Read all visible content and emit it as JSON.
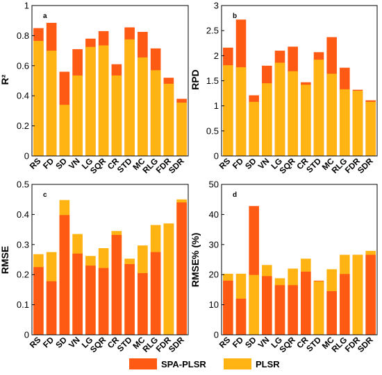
{
  "colors": {
    "spa": "#FF5A14",
    "plsr": "#FFB414"
  },
  "legend": [
    {
      "key": "spa",
      "label": "SPA-PLSR"
    },
    {
      "key": "plsr",
      "label": "PLSR"
    }
  ],
  "chart_data": [
    {
      "type": "bar",
      "panel": "a",
      "ylabel": "R²",
      "ylim": [
        0,
        1
      ],
      "yticks": [
        0,
        0.2,
        0.4,
        0.6,
        0.8,
        1
      ],
      "ytick_labels": [
        "0",
        "0.2",
        "0.4",
        "0.6",
        "0.8",
        "1"
      ],
      "categories": [
        "RS",
        "FD",
        "SD",
        "VN",
        "LG",
        "SQR",
        "CR",
        "STD",
        "MC",
        "RLG",
        "FDR",
        "SDR"
      ],
      "series": [
        {
          "name": "SPA-PLSR",
          "key": "spa",
          "values": [
            0.85,
            0.885,
            0.56,
            0.71,
            0.78,
            0.83,
            0.61,
            0.855,
            0.825,
            0.715,
            0.52,
            0.38
          ]
        },
        {
          "name": "PLSR",
          "key": "plsr",
          "values": [
            0.765,
            0.7,
            0.34,
            0.535,
            0.725,
            0.735,
            0.535,
            0.775,
            0.655,
            0.57,
            0.48,
            0.355
          ]
        }
      ]
    },
    {
      "type": "bar",
      "panel": "b",
      "ylabel": "RPD",
      "ylim": [
        0,
        3
      ],
      "yticks": [
        0,
        0.5,
        1,
        1.5,
        2,
        2.5,
        3
      ],
      "ytick_labels": [
        "0",
        "0.5",
        "1",
        "1.5",
        "2",
        "2.5",
        "3"
      ],
      "categories": [
        "RS",
        "FD",
        "SD",
        "VN",
        "LG",
        "SQR",
        "CR",
        "STD",
        "MC",
        "RLG",
        "FDR",
        "SDR"
      ],
      "series": [
        {
          "name": "SPA-PLSR",
          "key": "spa",
          "values": [
            2.16,
            2.72,
            1.21,
            1.8,
            2.1,
            2.18,
            1.47,
            2.07,
            2.37,
            1.76,
            1.32,
            1.11
          ]
        },
        {
          "name": "PLSR",
          "key": "plsr",
          "values": [
            1.81,
            1.77,
            1.08,
            1.45,
            1.86,
            1.69,
            1.42,
            1.92,
            1.64,
            1.33,
            1.3,
            1.08
          ]
        }
      ]
    },
    {
      "type": "bar",
      "panel": "c",
      "ylabel": "RMSE",
      "ylim": [
        0,
        0.5
      ],
      "yticks": [
        0,
        0.1,
        0.2,
        0.3,
        0.4,
        0.5
      ],
      "ytick_labels": [
        "0",
        "0.1",
        "0.2",
        "0.3",
        "0.4",
        "0.5"
      ],
      "categories": [
        "RS",
        "FD",
        "SD",
        "VN",
        "LG",
        "SQR",
        "CR",
        "STD",
        "MC",
        "RLG",
        "FDR",
        "SDR"
      ],
      "series": [
        {
          "name": "SPA-PLSR",
          "key": "spa",
          "values": [
            0.225,
            0.178,
            0.398,
            0.27,
            0.23,
            0.222,
            0.332,
            0.235,
            0.205,
            0.275,
            0.37,
            0.44
          ]
        },
        {
          "name": "PLSR",
          "key": "plsr",
          "values": [
            0.268,
            0.275,
            0.448,
            0.335,
            0.262,
            0.288,
            0.345,
            0.253,
            0.297,
            0.365,
            0.37,
            0.45
          ]
        }
      ]
    },
    {
      "type": "bar",
      "panel": "d",
      "ylabel": "RMSE% (%)",
      "ylim": [
        0,
        50
      ],
      "yticks": [
        0,
        10,
        20,
        30,
        40,
        50
      ],
      "ytick_labels": [
        "0",
        "10",
        "20",
        "30",
        "40",
        "50"
      ],
      "categories": [
        "RS",
        "FD",
        "SD",
        "VN",
        "LG",
        "SQR",
        "CR",
        "STD",
        "MC",
        "RLG",
        "FDR",
        "SDR"
      ],
      "series": [
        {
          "name": "SPA-PLSR",
          "key": "spa",
          "values": [
            18.0,
            12.0,
            42.8,
            19.5,
            16.5,
            16.5,
            21.0,
            18.0,
            14.5,
            20.2,
            26.6,
            26.6
          ]
        },
        {
          "name": "PLSR",
          "key": "plsr",
          "values": [
            20.3,
            20.3,
            19.9,
            23.2,
            18.8,
            22.0,
            25.3,
            17.8,
            21.8,
            26.6,
            26.6,
            27.9
          ]
        }
      ]
    }
  ]
}
